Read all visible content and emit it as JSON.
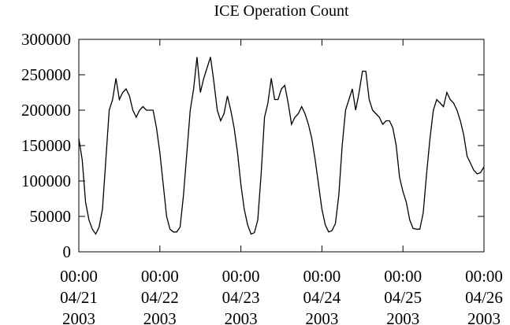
{
  "chart_data": {
    "type": "line",
    "title": "ICE Operation Count",
    "x": [
      "2003-04-21 00:00",
      "2003-04-21 01:00",
      "2003-04-21 02:00",
      "2003-04-21 03:00",
      "2003-04-21 04:00",
      "2003-04-21 05:00",
      "2003-04-21 06:00",
      "2003-04-21 07:00",
      "2003-04-21 08:00",
      "2003-04-21 09:00",
      "2003-04-21 10:00",
      "2003-04-21 11:00",
      "2003-04-21 12:00",
      "2003-04-21 13:00",
      "2003-04-21 14:00",
      "2003-04-21 15:00",
      "2003-04-21 16:00",
      "2003-04-21 17:00",
      "2003-04-21 18:00",
      "2003-04-21 19:00",
      "2003-04-21 20:00",
      "2003-04-21 21:00",
      "2003-04-21 22:00",
      "2003-04-21 23:00",
      "2003-04-22 00:00",
      "2003-04-22 01:00",
      "2003-04-22 02:00",
      "2003-04-22 03:00",
      "2003-04-22 04:00",
      "2003-04-22 05:00",
      "2003-04-22 06:00",
      "2003-04-22 07:00",
      "2003-04-22 08:00",
      "2003-04-22 09:00",
      "2003-04-22 10:00",
      "2003-04-22 11:00",
      "2003-04-22 12:00",
      "2003-04-22 13:00",
      "2003-04-22 14:00",
      "2003-04-22 15:00",
      "2003-04-22 16:00",
      "2003-04-22 17:00",
      "2003-04-22 18:00",
      "2003-04-22 19:00",
      "2003-04-22 20:00",
      "2003-04-22 21:00",
      "2003-04-22 22:00",
      "2003-04-22 23:00",
      "2003-04-23 00:00",
      "2003-04-23 01:00",
      "2003-04-23 02:00",
      "2003-04-23 03:00",
      "2003-04-23 04:00",
      "2003-04-23 05:00",
      "2003-04-23 06:00",
      "2003-04-23 07:00",
      "2003-04-23 08:00",
      "2003-04-23 09:00",
      "2003-04-23 10:00",
      "2003-04-23 11:00",
      "2003-04-23 12:00",
      "2003-04-23 13:00",
      "2003-04-23 14:00",
      "2003-04-23 15:00",
      "2003-04-23 16:00",
      "2003-04-23 17:00",
      "2003-04-23 18:00",
      "2003-04-23 19:00",
      "2003-04-23 20:00",
      "2003-04-23 21:00",
      "2003-04-23 22:00",
      "2003-04-23 23:00",
      "2003-04-24 00:00",
      "2003-04-24 01:00",
      "2003-04-24 02:00",
      "2003-04-24 03:00",
      "2003-04-24 04:00",
      "2003-04-24 05:00",
      "2003-04-24 06:00",
      "2003-04-24 07:00",
      "2003-04-24 08:00",
      "2003-04-24 09:00",
      "2003-04-24 10:00",
      "2003-04-24 11:00",
      "2003-04-24 12:00",
      "2003-04-24 13:00",
      "2003-04-24 14:00",
      "2003-04-24 15:00",
      "2003-04-24 16:00",
      "2003-04-24 17:00",
      "2003-04-24 18:00",
      "2003-04-24 19:00",
      "2003-04-24 20:00",
      "2003-04-24 21:00",
      "2003-04-24 22:00",
      "2003-04-24 23:00",
      "2003-04-25 00:00",
      "2003-04-25 01:00",
      "2003-04-25 02:00",
      "2003-04-25 03:00",
      "2003-04-25 04:00",
      "2003-04-25 05:00",
      "2003-04-25 06:00",
      "2003-04-25 07:00",
      "2003-04-25 08:00",
      "2003-04-25 09:00",
      "2003-04-25 10:00",
      "2003-04-25 11:00",
      "2003-04-25 12:00",
      "2003-04-25 13:00",
      "2003-04-25 14:00",
      "2003-04-25 15:00",
      "2003-04-25 16:00",
      "2003-04-25 17:00",
      "2003-04-25 18:00",
      "2003-04-25 19:00",
      "2003-04-25 20:00",
      "2003-04-25 21:00",
      "2003-04-25 22:00",
      "2003-04-25 23:00",
      "2003-04-26 00:00"
    ],
    "series": [
      {
        "color": "#000000",
        "values": [
          160000,
          130000,
          70000,
          45000,
          32000,
          25000,
          35000,
          60000,
          130000,
          200000,
          215000,
          245000,
          215000,
          225000,
          230000,
          220000,
          200000,
          190000,
          200000,
          205000,
          200000,
          200000,
          200000,
          175000,
          140000,
          95000,
          50000,
          32000,
          28000,
          28000,
          35000,
          80000,
          140000,
          200000,
          230000,
          275000,
          225000,
          245000,
          260000,
          275000,
          240000,
          200000,
          185000,
          195000,
          220000,
          200000,
          175000,
          140000,
          95000,
          60000,
          38000,
          25000,
          27000,
          45000,
          110000,
          190000,
          210000,
          245000,
          215000,
          215000,
          230000,
          235000,
          210000,
          180000,
          190000,
          195000,
          205000,
          195000,
          180000,
          160000,
          130000,
          95000,
          60000,
          38000,
          28000,
          30000,
          40000,
          80000,
          150000,
          200000,
          215000,
          230000,
          200000,
          225000,
          255000,
          255000,
          215000,
          200000,
          195000,
          190000,
          180000,
          185000,
          185000,
          175000,
          150000,
          105000,
          85000,
          70000,
          45000,
          33000,
          32000,
          32000,
          55000,
          110000,
          160000,
          200000,
          215000,
          210000,
          205000,
          225000,
          215000,
          210000,
          200000,
          185000,
          165000,
          135000,
          125000,
          115000,
          110000,
          112000,
          120000
        ]
      }
    ],
    "xlim": [
      "2003-04-21 00:00",
      "2003-04-26 00:00"
    ],
    "xticks": [
      {
        "value": "2003-04-21 00:00",
        "label": "00:00\n04/21\n2003"
      },
      {
        "value": "2003-04-22 00:00",
        "label": "00:00\n04/22\n2003"
      },
      {
        "value": "2003-04-23 00:00",
        "label": "00:00\n04/23\n2003"
      },
      {
        "value": "2003-04-24 00:00",
        "label": "00:00\n04/24\n2003"
      },
      {
        "value": "2003-04-25 00:00",
        "label": "00:00\n04/25\n2003"
      },
      {
        "value": "2003-04-26 00:00",
        "label": "00:00\n04/26\n2003"
      }
    ],
    "ylim": [
      0,
      300000
    ],
    "yticks": [
      0,
      50000,
      100000,
      150000,
      200000,
      250000,
      300000
    ],
    "grid": false
  }
}
